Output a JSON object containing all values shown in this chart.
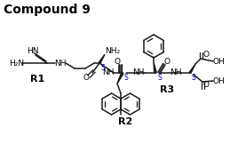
{
  "title": "Compound 9",
  "title_fontsize": 10,
  "title_fontweight": "bold",
  "background_color": "#ffffff",
  "text_color": "#000000",
  "sulfur_color": "#0000cc",
  "bond_color": "#1a1a1a",
  "bond_lw": 1.1,
  "label_R1": "R1",
  "label_R2": "R2",
  "label_R3": "R3",
  "figsize": [
    2.59,
    1.89
  ],
  "dpi": 100
}
